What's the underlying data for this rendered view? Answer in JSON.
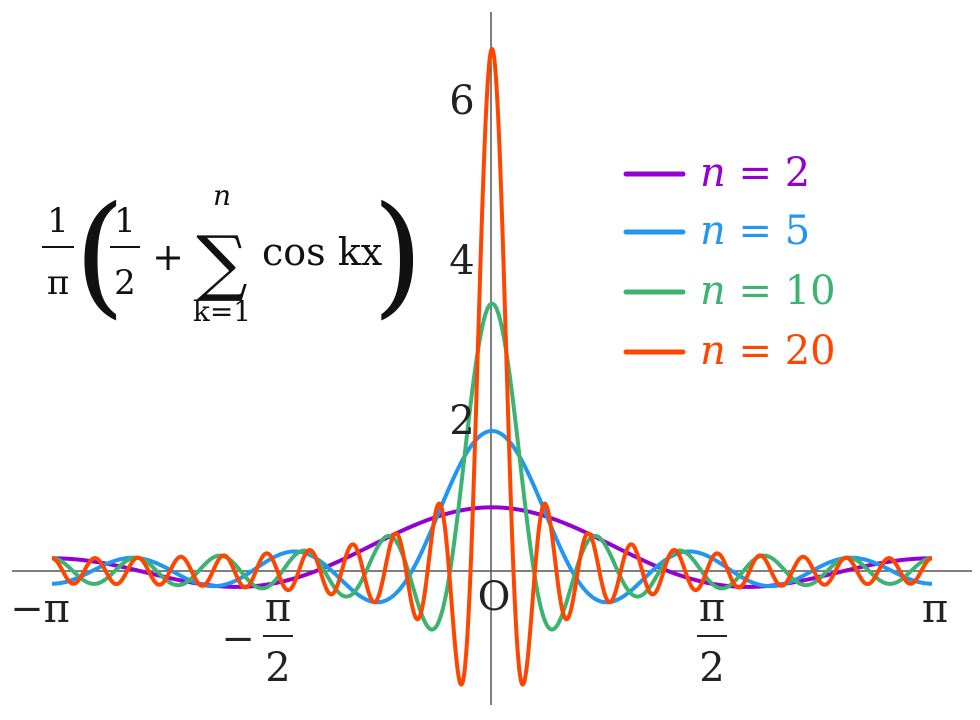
{
  "chart_data": {
    "type": "line",
    "formula": {
      "prefix_num": "1",
      "prefix_den": "π",
      "half_num": "1",
      "half_den": "2",
      "plus": "+",
      "sigma": "∑",
      "upper": "n",
      "lower": "k=1",
      "term": "cos kx",
      "paren_open": "(",
      "paren_close": ")"
    },
    "xlim": [
      -3.14159,
      3.14159
    ],
    "ylim": [
      -1.45,
      7.0
    ],
    "samples": 1400,
    "x_ticks": [
      {
        "value": -3.14159,
        "label": "−π"
      },
      {
        "value": -1.5708,
        "label_minus": "−",
        "label_num": "π",
        "label_den": "2"
      },
      {
        "value": 0,
        "label": "O"
      },
      {
        "value": 1.5708,
        "label_num": "π",
        "label_den": "2"
      },
      {
        "value": 3.14159,
        "label": "π"
      }
    ],
    "y_ticks": [
      {
        "value": 2,
        "label": "2"
      },
      {
        "value": 4,
        "label": "4"
      },
      {
        "value": 6,
        "label": "6"
      }
    ],
    "grid": false,
    "legend_position": "top-right",
    "series": [
      {
        "name": "n = 2",
        "var": "n",
        "eq": " = ",
        "val": "2",
        "n": 2,
        "color": "#9400d3"
      },
      {
        "name": "n = 5",
        "var": "n",
        "eq": " = ",
        "val": "5",
        "n": 5,
        "color": "#2196f3"
      },
      {
        "name": "n = 10",
        "var": "n",
        "eq": " = ",
        "val": "10",
        "n": 10,
        "color": "#3cb371"
      },
      {
        "name": "n = 20",
        "var": "n",
        "eq": " = ",
        "val": "20",
        "n": 20,
        "color": "#ff4500"
      }
    ]
  }
}
